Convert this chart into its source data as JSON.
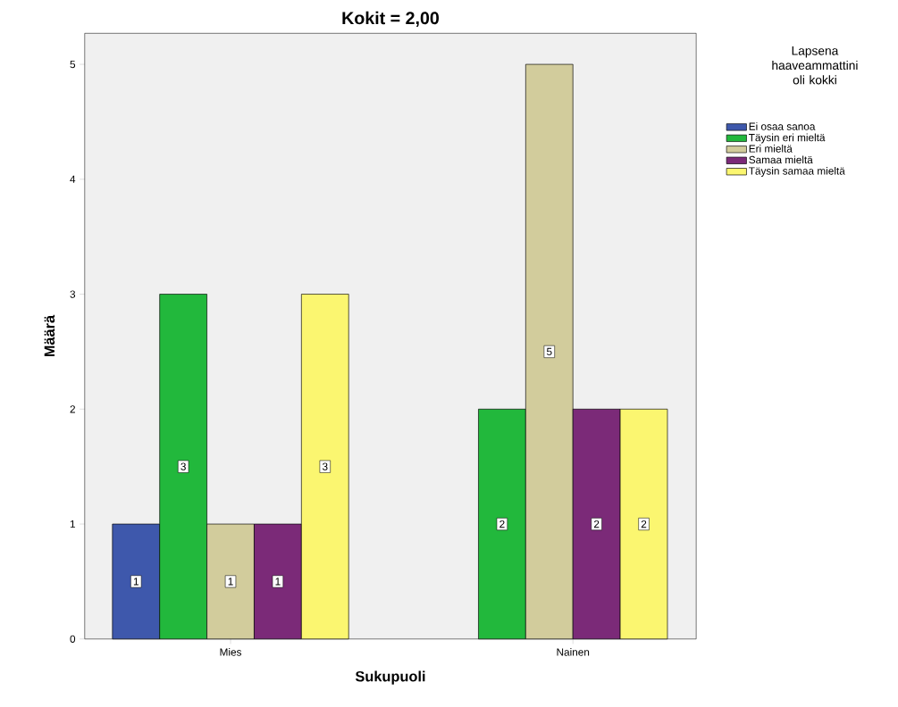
{
  "chart_data": {
    "type": "bar",
    "title": "Kokit = 2,00",
    "xlabel": "Sukupuoli",
    "ylabel": "Määrä",
    "legend_title": "Lapsena haaveammattini oli kokki",
    "categories": [
      "Mies",
      "Nainen"
    ],
    "series": [
      {
        "name": "Ei osaa sanoa",
        "color": "#3e58ac",
        "values": [
          1,
          null
        ]
      },
      {
        "name": "Täysin eri mieltä",
        "color": "#22b83c",
        "values": [
          3,
          2
        ]
      },
      {
        "name": "Eri mieltä",
        "color": "#d2cc9c",
        "values": [
          1,
          5
        ]
      },
      {
        "name": "Samaa mieltä",
        "color": "#7b2a78",
        "values": [
          1,
          2
        ]
      },
      {
        "name": "Täysin samaa mieltä",
        "color": "#fbf670",
        "values": [
          3,
          2
        ]
      }
    ],
    "ylim": [
      0,
      5.27
    ],
    "yticks": [
      0,
      1,
      2,
      3,
      4,
      5
    ],
    "data_labels": true,
    "legend": "right",
    "grid": false
  }
}
